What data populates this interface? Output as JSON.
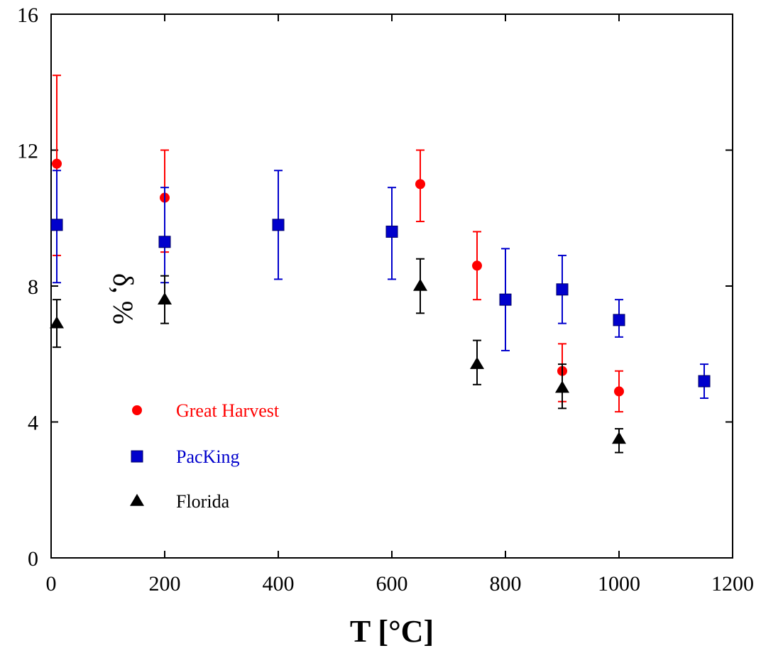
{
  "chart_data": {
    "type": "scatter",
    "title": "",
    "xlabel": "T [°C]",
    "ylabel": "δ, %",
    "xlim": [
      0,
      1200
    ],
    "ylim": [
      0,
      16
    ],
    "xticks": [
      0,
      200,
      400,
      600,
      800,
      1000,
      1200
    ],
    "yticks": [
      0,
      4,
      8,
      12,
      16
    ],
    "grid": false,
    "legend_position": "lower-left",
    "series": [
      {
        "name": "Great Harvest",
        "marker": "circle",
        "color": "#ff0000",
        "points": [
          {
            "x": 10,
            "y": 11.6,
            "err_low": 8.9,
            "err_high": 14.2
          },
          {
            "x": 200,
            "y": 10.6,
            "err_low": 9.0,
            "err_high": 12.0
          },
          {
            "x": 650,
            "y": 11.0,
            "err_low": 9.9,
            "err_high": 12.0
          },
          {
            "x": 750,
            "y": 8.6,
            "err_low": 7.6,
            "err_high": 9.6
          },
          {
            "x": 900,
            "y": 5.5,
            "err_low": 4.6,
            "err_high": 6.3
          },
          {
            "x": 1000,
            "y": 4.9,
            "err_low": 4.3,
            "err_high": 5.5
          }
        ]
      },
      {
        "name": "PacKing",
        "marker": "square",
        "color": "#0000cc",
        "points": [
          {
            "x": 10,
            "y": 9.8,
            "err_low": 8.1,
            "err_high": 11.4
          },
          {
            "x": 200,
            "y": 9.3,
            "err_low": 8.1,
            "err_high": 10.9
          },
          {
            "x": 400,
            "y": 9.8,
            "err_low": 8.2,
            "err_high": 11.4
          },
          {
            "x": 600,
            "y": 9.6,
            "err_low": 8.2,
            "err_high": 10.9
          },
          {
            "x": 800,
            "y": 7.6,
            "err_low": 6.1,
            "err_high": 9.1
          },
          {
            "x": 900,
            "y": 7.9,
            "err_low": 6.9,
            "err_high": 8.9
          },
          {
            "x": 1000,
            "y": 7.0,
            "err_low": 6.5,
            "err_high": 7.6
          },
          {
            "x": 1150,
            "y": 5.2,
            "err_low": 4.7,
            "err_high": 5.7
          }
        ]
      },
      {
        "name": "Florida",
        "marker": "triangle",
        "color": "#000000",
        "points": [
          {
            "x": 10,
            "y": 6.9,
            "err_low": 6.2,
            "err_high": 7.6
          },
          {
            "x": 200,
            "y": 7.6,
            "err_low": 6.9,
            "err_high": 8.3
          },
          {
            "x": 650,
            "y": 8.0,
            "err_low": 7.2,
            "err_high": 8.8
          },
          {
            "x": 750,
            "y": 5.7,
            "err_low": 5.1,
            "err_high": 6.4
          },
          {
            "x": 900,
            "y": 5.0,
            "err_low": 4.4,
            "err_high": 5.7
          },
          {
            "x": 1000,
            "y": 3.5,
            "err_low": 3.1,
            "err_high": 3.8
          }
        ]
      }
    ]
  }
}
